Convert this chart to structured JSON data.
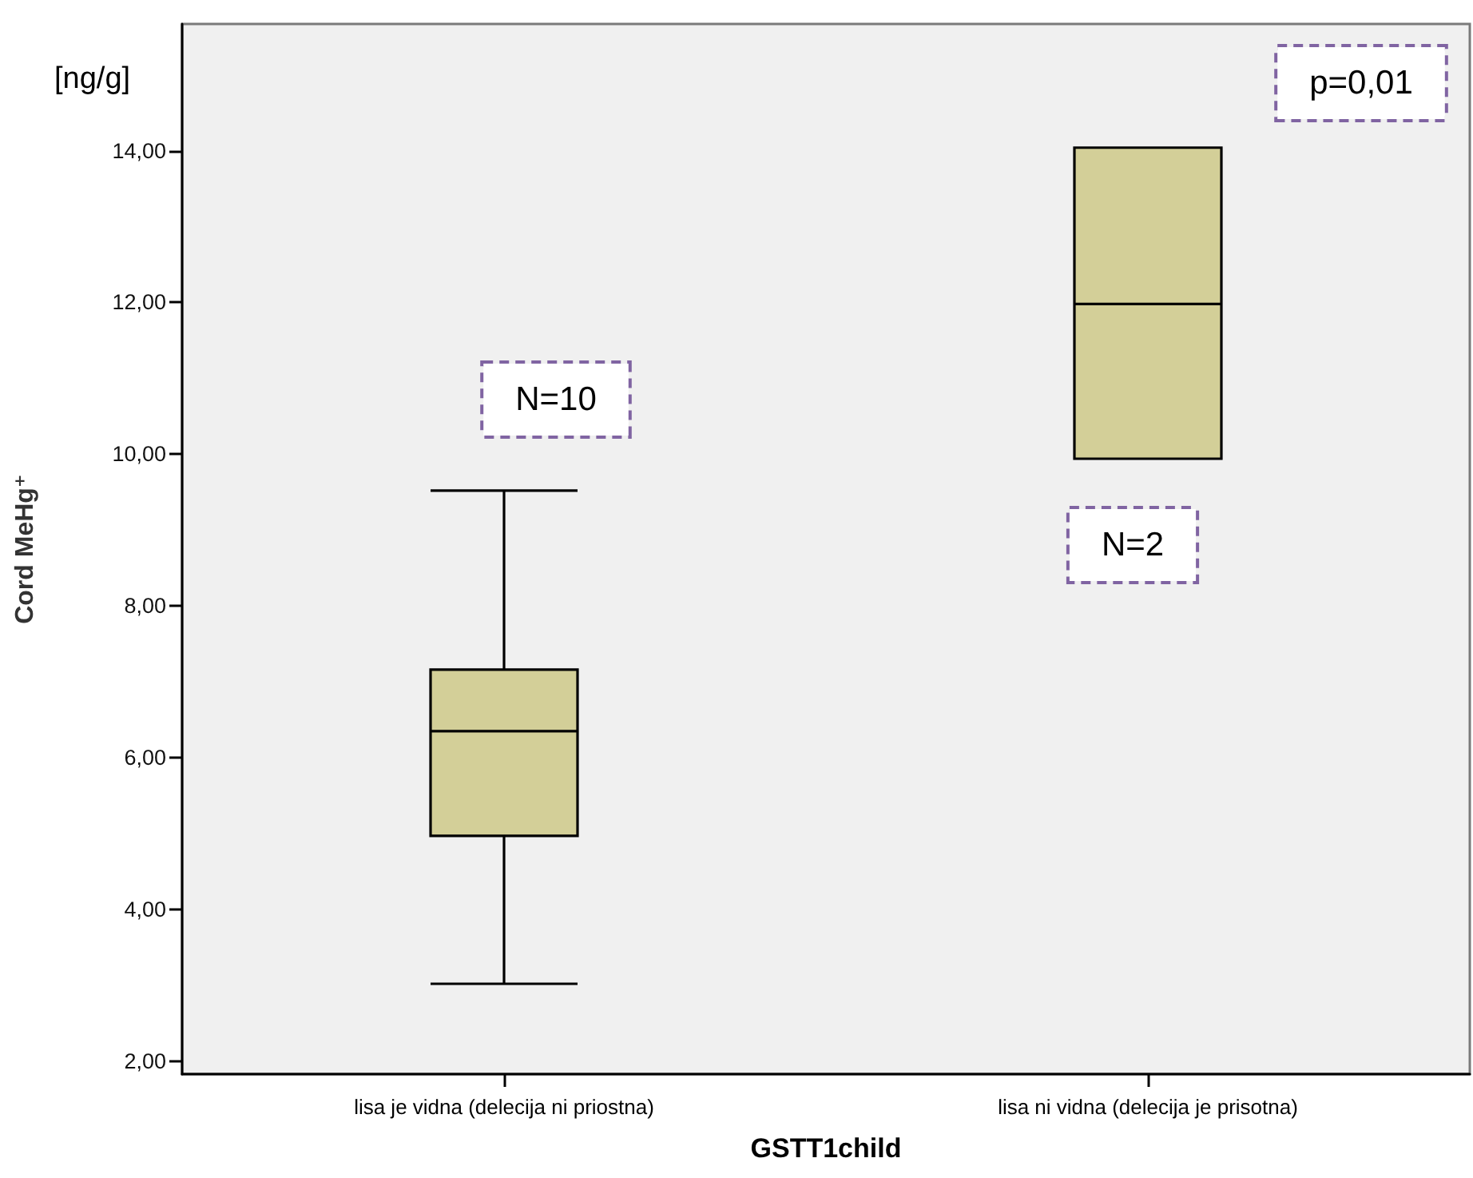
{
  "chart_data": {
    "type": "box",
    "xlabel": "GSTT1child",
    "ylabel": "Cord MeHg⁺",
    "categories": [
      "lisa je vidna (delecija ni priostna)",
      "lisa ni vidna (delecija je prisotna)"
    ],
    "boxes": [
      {
        "low": 3.02,
        "q1": 4.97,
        "median": 6.35,
        "q3": 7.16,
        "high": 9.52
      },
      {
        "low": 9.94,
        "q1": 9.94,
        "median": 11.98,
        "q3": 14.04,
        "high": 14.04
      }
    ],
    "color": "#d3cf98",
    "ylim": [
      1.83,
      15.67
    ],
    "yticks": [
      {
        "value": 2,
        "label": "2,00"
      },
      {
        "value": 4,
        "label": "4,00"
      },
      {
        "value": 6,
        "label": "6,00"
      },
      {
        "value": 8,
        "label": "8,00"
      },
      {
        "value": 10,
        "label": "10,00"
      },
      {
        "value": 12,
        "label": "12,00"
      },
      {
        "value": 14,
        "label": "14,00"
      }
    ],
    "annotations": [
      "[ng/g]",
      "p=0,01",
      "N=10",
      "N=2"
    ]
  }
}
